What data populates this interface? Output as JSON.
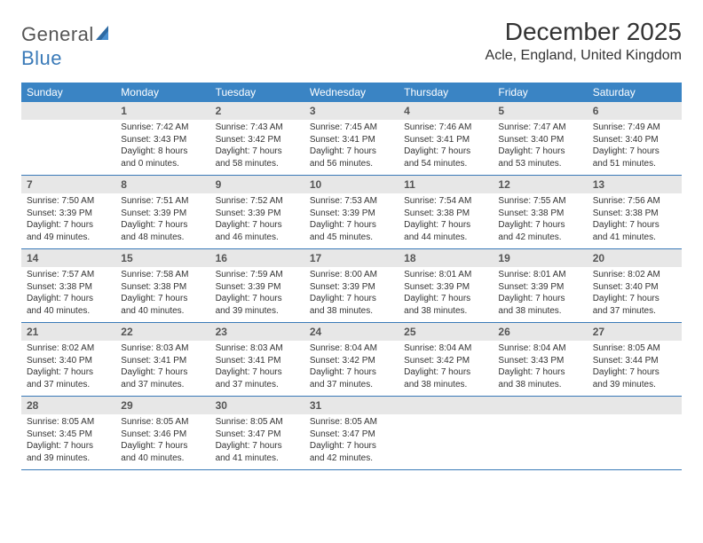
{
  "brand": {
    "part1": "General",
    "part2": "Blue"
  },
  "title": "December 2025",
  "location": "Acle, England, United Kingdom",
  "colors": {
    "header_bg": "#3a84c4",
    "header_text": "#ffffff",
    "daynum_bg": "#e7e7e7",
    "daynum_text": "#555555",
    "rule": "#3a7ab8",
    "logo_blue": "#3a7ab8",
    "body_text": "#333333",
    "page_bg": "#ffffff"
  },
  "typography": {
    "title_fontsize": 28,
    "location_fontsize": 16,
    "dow_fontsize": 12,
    "daynum_fontsize": 12,
    "cell_fontsize": 10,
    "logo_fontsize": 22
  },
  "days_of_week": [
    "Sunday",
    "Monday",
    "Tuesday",
    "Wednesday",
    "Thursday",
    "Friday",
    "Saturday"
  ],
  "weeks": [
    [
      {
        "n": "",
        "sunrise": "",
        "sunset": "",
        "daylight": ""
      },
      {
        "n": "1",
        "sunrise": "7:42 AM",
        "sunset": "3:43 PM",
        "daylight": "8 hours and 0 minutes."
      },
      {
        "n": "2",
        "sunrise": "7:43 AM",
        "sunset": "3:42 PM",
        "daylight": "7 hours and 58 minutes."
      },
      {
        "n": "3",
        "sunrise": "7:45 AM",
        "sunset": "3:41 PM",
        "daylight": "7 hours and 56 minutes."
      },
      {
        "n": "4",
        "sunrise": "7:46 AM",
        "sunset": "3:41 PM",
        "daylight": "7 hours and 54 minutes."
      },
      {
        "n": "5",
        "sunrise": "7:47 AM",
        "sunset": "3:40 PM",
        "daylight": "7 hours and 53 minutes."
      },
      {
        "n": "6",
        "sunrise": "7:49 AM",
        "sunset": "3:40 PM",
        "daylight": "7 hours and 51 minutes."
      }
    ],
    [
      {
        "n": "7",
        "sunrise": "7:50 AM",
        "sunset": "3:39 PM",
        "daylight": "7 hours and 49 minutes."
      },
      {
        "n": "8",
        "sunrise": "7:51 AM",
        "sunset": "3:39 PM",
        "daylight": "7 hours and 48 minutes."
      },
      {
        "n": "9",
        "sunrise": "7:52 AM",
        "sunset": "3:39 PM",
        "daylight": "7 hours and 46 minutes."
      },
      {
        "n": "10",
        "sunrise": "7:53 AM",
        "sunset": "3:39 PM",
        "daylight": "7 hours and 45 minutes."
      },
      {
        "n": "11",
        "sunrise": "7:54 AM",
        "sunset": "3:38 PM",
        "daylight": "7 hours and 44 minutes."
      },
      {
        "n": "12",
        "sunrise": "7:55 AM",
        "sunset": "3:38 PM",
        "daylight": "7 hours and 42 minutes."
      },
      {
        "n": "13",
        "sunrise": "7:56 AM",
        "sunset": "3:38 PM",
        "daylight": "7 hours and 41 minutes."
      }
    ],
    [
      {
        "n": "14",
        "sunrise": "7:57 AM",
        "sunset": "3:38 PM",
        "daylight": "7 hours and 40 minutes."
      },
      {
        "n": "15",
        "sunrise": "7:58 AM",
        "sunset": "3:38 PM",
        "daylight": "7 hours and 40 minutes."
      },
      {
        "n": "16",
        "sunrise": "7:59 AM",
        "sunset": "3:39 PM",
        "daylight": "7 hours and 39 minutes."
      },
      {
        "n": "17",
        "sunrise": "8:00 AM",
        "sunset": "3:39 PM",
        "daylight": "7 hours and 38 minutes."
      },
      {
        "n": "18",
        "sunrise": "8:01 AM",
        "sunset": "3:39 PM",
        "daylight": "7 hours and 38 minutes."
      },
      {
        "n": "19",
        "sunrise": "8:01 AM",
        "sunset": "3:39 PM",
        "daylight": "7 hours and 38 minutes."
      },
      {
        "n": "20",
        "sunrise": "8:02 AM",
        "sunset": "3:40 PM",
        "daylight": "7 hours and 37 minutes."
      }
    ],
    [
      {
        "n": "21",
        "sunrise": "8:02 AM",
        "sunset": "3:40 PM",
        "daylight": "7 hours and 37 minutes."
      },
      {
        "n": "22",
        "sunrise": "8:03 AM",
        "sunset": "3:41 PM",
        "daylight": "7 hours and 37 minutes."
      },
      {
        "n": "23",
        "sunrise": "8:03 AM",
        "sunset": "3:41 PM",
        "daylight": "7 hours and 37 minutes."
      },
      {
        "n": "24",
        "sunrise": "8:04 AM",
        "sunset": "3:42 PM",
        "daylight": "7 hours and 37 minutes."
      },
      {
        "n": "25",
        "sunrise": "8:04 AM",
        "sunset": "3:42 PM",
        "daylight": "7 hours and 38 minutes."
      },
      {
        "n": "26",
        "sunrise": "8:04 AM",
        "sunset": "3:43 PM",
        "daylight": "7 hours and 38 minutes."
      },
      {
        "n": "27",
        "sunrise": "8:05 AM",
        "sunset": "3:44 PM",
        "daylight": "7 hours and 39 minutes."
      }
    ],
    [
      {
        "n": "28",
        "sunrise": "8:05 AM",
        "sunset": "3:45 PM",
        "daylight": "7 hours and 39 minutes."
      },
      {
        "n": "29",
        "sunrise": "8:05 AM",
        "sunset": "3:46 PM",
        "daylight": "7 hours and 40 minutes."
      },
      {
        "n": "30",
        "sunrise": "8:05 AM",
        "sunset": "3:47 PM",
        "daylight": "7 hours and 41 minutes."
      },
      {
        "n": "31",
        "sunrise": "8:05 AM",
        "sunset": "3:47 PM",
        "daylight": "7 hours and 42 minutes."
      },
      {
        "n": "",
        "sunrise": "",
        "sunset": "",
        "daylight": ""
      },
      {
        "n": "",
        "sunrise": "",
        "sunset": "",
        "daylight": ""
      },
      {
        "n": "",
        "sunrise": "",
        "sunset": "",
        "daylight": ""
      }
    ]
  ],
  "labels": {
    "sunrise_prefix": "Sunrise: ",
    "sunset_prefix": "Sunset: ",
    "daylight_prefix": "Daylight: "
  }
}
